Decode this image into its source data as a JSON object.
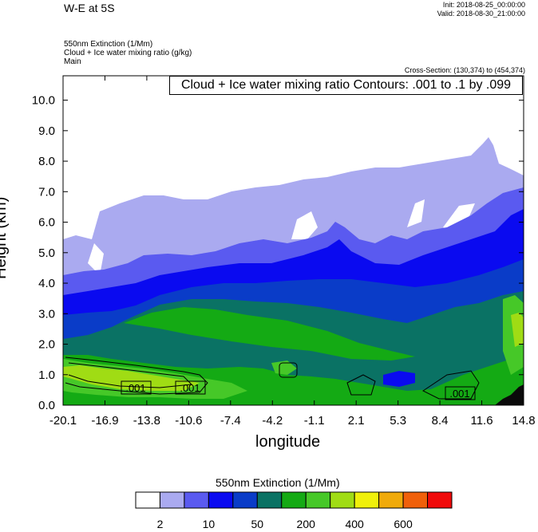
{
  "header": {
    "title": "W-E at 5S",
    "init": "Init: 2018-08-25_00:00:00",
    "valid": "Valid: 2018-08-30_21:00:00",
    "field1": "550nm Extinction   (1/Mm)",
    "field2": "Cloud + Ice water mixing ratio   (g/kg)",
    "field3": "Main",
    "cross_section": "Cross-Section: (130,374) to (454,374)",
    "contour_label": "Cloud + Ice water mixing ratio Contours: .001 to .1 by .099"
  },
  "chart_data": {
    "type": "heatmap",
    "xlabel": "longitude",
    "ylabel": "Height (km)",
    "x_ticks": [
      "-20.1",
      "-16.9",
      "-13.8",
      "-10.6",
      "-7.4",
      "-4.2",
      "-1.1",
      "2.1",
      "5.3",
      "8.4",
      "11.6",
      "14.8"
    ],
    "y_ticks": [
      "0.0",
      "1.0",
      "2.0",
      "3.0",
      "4.0",
      "5.0",
      "6.0",
      "7.0",
      "8.0",
      "9.0",
      "10.0"
    ],
    "xlim": [
      -20.1,
      14.8
    ],
    "ylim": [
      0,
      10.8
    ],
    "contour_labels": [
      ".001",
      ".001",
      ".001"
    ],
    "colorbar": {
      "label": "550nm Extinction  (1/Mm)",
      "tick_labels": [
        "2",
        "10",
        "50",
        "200",
        "400",
        "600"
      ],
      "colors": [
        "#ffffff",
        "#aaaaf0",
        "#5a5af0",
        "#0a0af0",
        "#0a3cc8",
        "#0a7264",
        "#14aa14",
        "#46c828",
        "#a0dc14",
        "#f0f00a",
        "#f0aa0a",
        "#f0600a",
        "#f00a0a"
      ]
    }
  }
}
